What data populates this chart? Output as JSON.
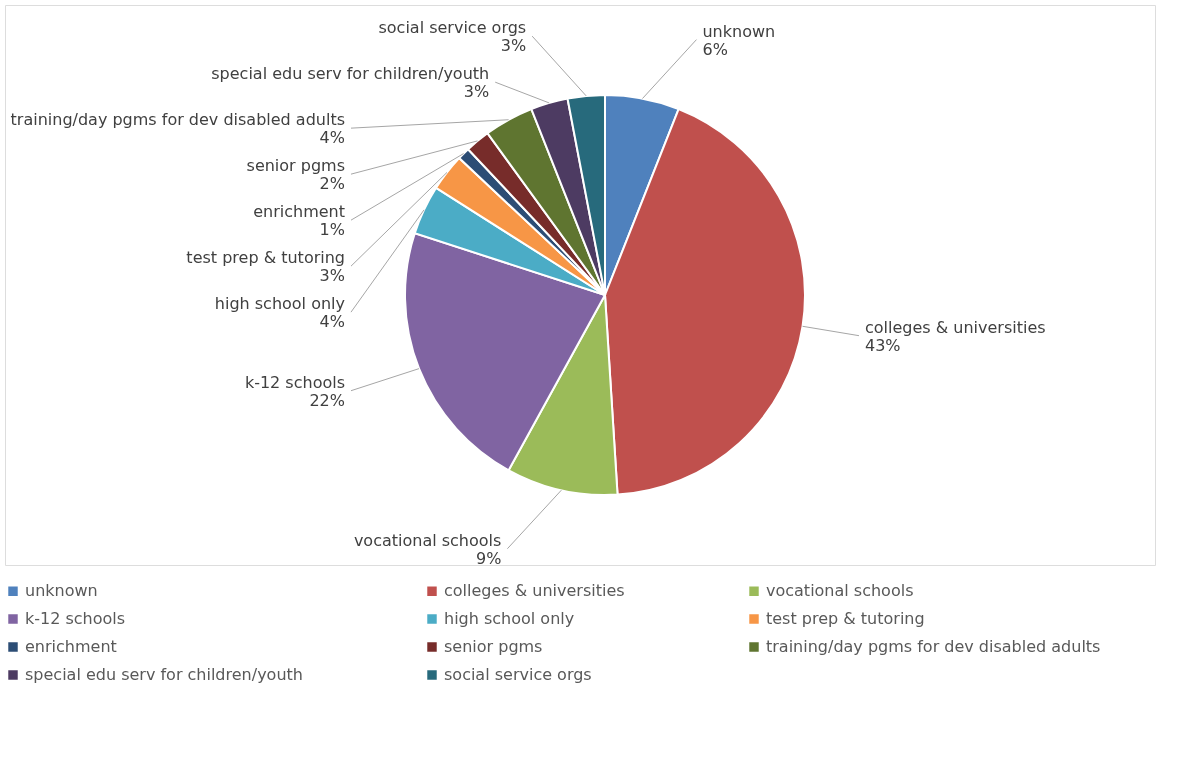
{
  "chart_data": {
    "type": "pie",
    "categories": [
      "unknown",
      "colleges & universities",
      "vocational schools",
      "k-12 schools",
      "high school only",
      "test prep & tutoring",
      "enrichment",
      "senior pgms",
      "training/day pgms for dev disabled adults",
      "special edu serv for children/youth",
      "social service orgs"
    ],
    "values": [
      6,
      43,
      9,
      22,
      4,
      3,
      1,
      2,
      4,
      3,
      3
    ],
    "value_labels": [
      "6%",
      "43%",
      "9%",
      "22%",
      "4%",
      "3%",
      "1%",
      "2%",
      "4%",
      "3%",
      "3%"
    ],
    "colors": [
      "#4f81bd",
      "#c0504d",
      "#9bbb59",
      "#8064a2",
      "#4bacc6",
      "#f79646",
      "#2c4d75",
      "#772c2a",
      "#5f7530",
      "#4d3b62",
      "#276a7c"
    ],
    "legend": "bottom"
  }
}
